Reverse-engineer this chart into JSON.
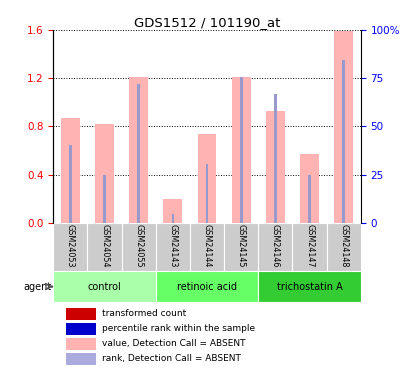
{
  "title": "GDS1512 / 101190_at",
  "samples": [
    "GSM24053",
    "GSM24054",
    "GSM24055",
    "GSM24143",
    "GSM24144",
    "GSM24145",
    "GSM24146",
    "GSM24147",
    "GSM24148"
  ],
  "bar_values_pink": [
    0.87,
    0.82,
    1.21,
    0.2,
    0.74,
    1.21,
    0.93,
    0.57,
    1.59
  ],
  "bar_values_blue": [
    0.65,
    0.4,
    1.15,
    0.07,
    0.49,
    1.21,
    1.07,
    0.4,
    1.35
  ],
  "pink_color": "#FFB3B3",
  "blue_color": "#9999CC",
  "left_ylim": [
    0,
    1.6
  ],
  "right_ylim": [
    0,
    100
  ],
  "left_yticks": [
    0,
    0.4,
    0.8,
    1.2,
    1.6
  ],
  "right_yticks": [
    0,
    25,
    50,
    75,
    100
  ],
  "right_yticklabels": [
    "0",
    "25",
    "50",
    "75",
    "100%"
  ],
  "groups": [
    {
      "label": "control",
      "color": "#AAFFAA",
      "start": 0,
      "end": 3
    },
    {
      "label": "retinoic acid",
      "color": "#66FF66",
      "start": 3,
      "end": 6
    },
    {
      "label": "trichostatin A",
      "color": "#33CC33",
      "start": 6,
      "end": 9
    }
  ],
  "agent_label": "agent",
  "legend_items": [
    {
      "label": "transformed count",
      "color": "#CC0000"
    },
    {
      "label": "percentile rank within the sample",
      "color": "#0000CC"
    },
    {
      "label": "value, Detection Call = ABSENT",
      "color": "#FFB3B3"
    },
    {
      "label": "rank, Detection Call = ABSENT",
      "color": "#AAAADD"
    }
  ],
  "bar_width": 0.55,
  "blue_bar_width": 0.08,
  "grid_color": "black"
}
